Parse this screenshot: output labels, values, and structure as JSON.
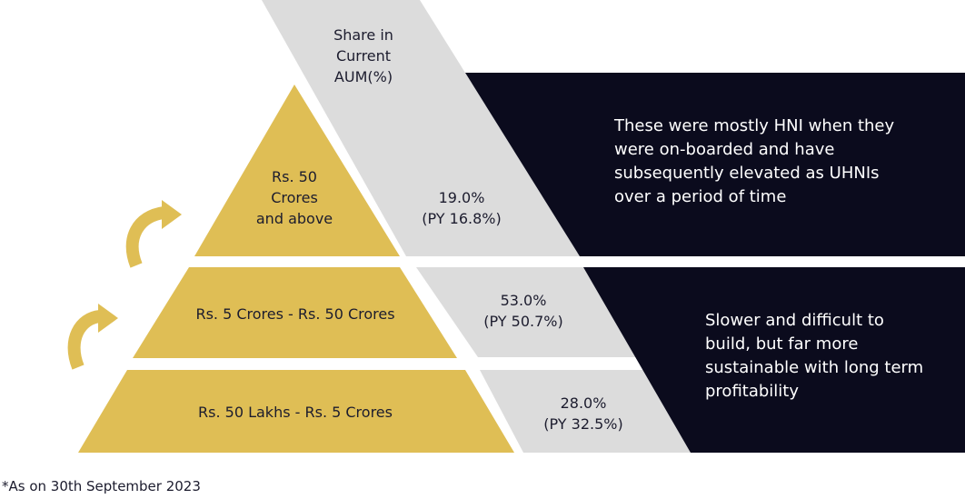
{
  "header": {
    "share_lines": [
      "Share in",
      "Current",
      "AUM(%)"
    ]
  },
  "tiers": [
    {
      "label_lines": [
        "Rs. 50",
        "Crores",
        "and above"
      ],
      "share": "19.0%",
      "prior": "(PY 16.8%)"
    },
    {
      "label_lines": [
        "Rs. 5 Crores - Rs. 50 Crores"
      ],
      "share": "53.0%",
      "prior": "(PY 50.7%)"
    },
    {
      "label_lines": [
        "Rs. 50 Lakhs - Rs. 5 Crores"
      ],
      "share": "28.0%",
      "prior": "(PY 32.5%)"
    }
  ],
  "notes": {
    "top_lines": [
      "These were mostly HNI when they",
      "were on-boarded and have",
      "subsequently elevated as UHNIs",
      "over a period of time"
    ],
    "bottom_lines": [
      "Slower and difficult to",
      "build, but far more",
      "sustainable with long term",
      "profitability"
    ]
  },
  "footnote": "*As on 30th September 2023",
  "colors": {
    "gold": "#DFBE55",
    "grey": "#DCDCDC",
    "navy": "#0B0B1D",
    "text": "#1C1C2E"
  },
  "icons": [
    "curved-arrow-icon",
    "curved-arrow-icon"
  ]
}
